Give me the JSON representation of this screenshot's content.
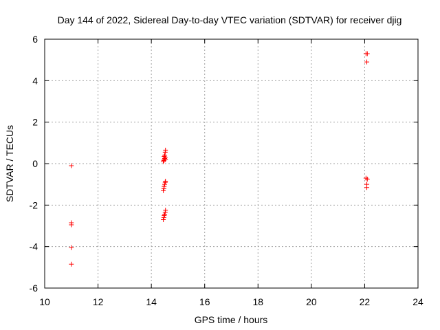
{
  "chart_data": {
    "type": "scatter",
    "title": "Day 144 of 2022, Sidereal Day-to-day VTEC variation (SDTVAR) for receiver djig",
    "xlabel": "GPS time / hours",
    "ylabel": "SDTVAR / TECUs",
    "xlim": [
      10,
      24
    ],
    "ylim": [
      -6,
      6
    ],
    "xticks": [
      10,
      12,
      14,
      16,
      18,
      20,
      22,
      24
    ],
    "yticks": [
      -6,
      -4,
      -2,
      0,
      2,
      4,
      6
    ],
    "xtick_labels": [
      "10",
      "12",
      "14",
      "16",
      "18",
      "20",
      "22",
      "24"
    ],
    "ytick_labels": [
      "-6",
      "-4",
      "-2",
      "0",
      "2",
      "4",
      "6"
    ],
    "grid": true,
    "marker": "+",
    "color": "#ff0000",
    "series": [
      {
        "name": "SDTVAR",
        "points": [
          [
            11.0,
            -0.1
          ],
          [
            11.0,
            -2.85
          ],
          [
            11.0,
            -2.95
          ],
          [
            11.0,
            -4.05
          ],
          [
            11.0,
            -4.85
          ],
          [
            14.45,
            -2.7
          ],
          [
            14.47,
            -2.6
          ],
          [
            14.48,
            -2.5
          ],
          [
            14.5,
            -2.45
          ],
          [
            14.52,
            -2.35
          ],
          [
            14.53,
            -2.25
          ],
          [
            14.45,
            -1.3
          ],
          [
            14.47,
            -1.2
          ],
          [
            14.48,
            -1.1
          ],
          [
            14.5,
            -1.0
          ],
          [
            14.52,
            -0.9
          ],
          [
            14.53,
            -0.85
          ],
          [
            14.45,
            0.1
          ],
          [
            14.47,
            0.15
          ],
          [
            14.48,
            0.2
          ],
          [
            14.5,
            0.25
          ],
          [
            14.52,
            0.3
          ],
          [
            14.53,
            0.2
          ],
          [
            14.48,
            0.35
          ],
          [
            14.5,
            0.4
          ],
          [
            14.52,
            0.55
          ],
          [
            14.53,
            0.65
          ],
          [
            22.05,
            5.3
          ],
          [
            22.1,
            5.3
          ],
          [
            22.08,
            4.9
          ],
          [
            22.05,
            -0.7
          ],
          [
            22.1,
            -0.75
          ],
          [
            22.08,
            -1.0
          ],
          [
            22.08,
            -1.15
          ]
        ]
      }
    ]
  }
}
